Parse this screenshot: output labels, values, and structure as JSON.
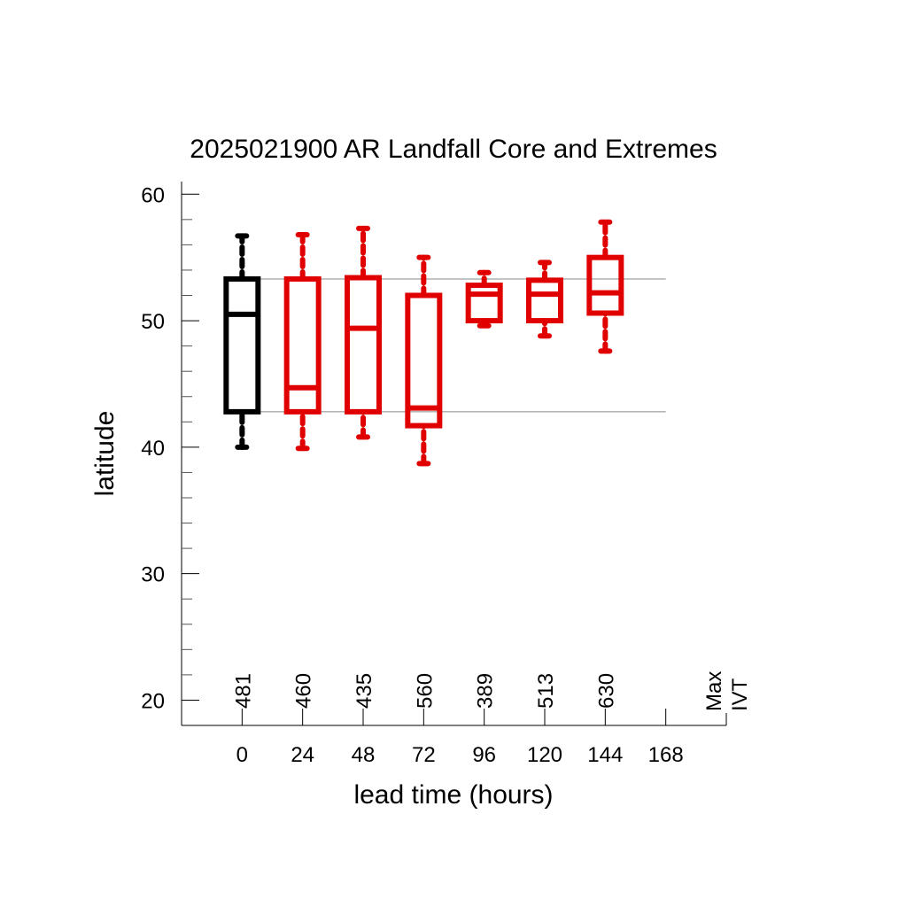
{
  "chart_data": {
    "type": "box",
    "title": "2025021900 AR Landfall Core and Extremes",
    "xlabel": "lead time (hours)",
    "ylabel": "latitude",
    "x_ticks": [
      "0",
      "24",
      "48",
      "72",
      "96",
      "120",
      "144",
      "168"
    ],
    "y_ticks": [
      20,
      30,
      40,
      50,
      60
    ],
    "xlim": [
      -24,
      192
    ],
    "ylim": [
      18,
      61
    ],
    "reference_lines": [
      53.3,
      42.8
    ],
    "count_header": [
      "Max",
      "IVT"
    ],
    "colors": {
      "observed": "#000000",
      "forecast": "#e00000",
      "reference": "#888888"
    },
    "boxes": [
      {
        "x": 0,
        "count": "481",
        "whisker_low": 40.0,
        "q1": 42.8,
        "median": 50.5,
        "q3": 53.3,
        "whisker_high": 56.7,
        "color": "#000000"
      },
      {
        "x": 24,
        "count": "460",
        "whisker_low": 39.9,
        "q1": 42.8,
        "median": 44.7,
        "q3": 53.3,
        "whisker_high": 56.8,
        "color": "#e00000"
      },
      {
        "x": 48,
        "count": "435",
        "whisker_low": 40.8,
        "q1": 42.8,
        "median": 49.4,
        "q3": 53.4,
        "whisker_high": 57.3,
        "color": "#e00000"
      },
      {
        "x": 72,
        "count": "560",
        "whisker_low": 38.7,
        "q1": 41.7,
        "median": 43.1,
        "q3": 52.0,
        "whisker_high": 55.0,
        "color": "#e00000"
      },
      {
        "x": 96,
        "count": "389",
        "whisker_low": 49.6,
        "q1": 50.0,
        "median": 52.1,
        "q3": 52.8,
        "whisker_high": 53.8,
        "color": "#e00000"
      },
      {
        "x": 120,
        "count": "513",
        "whisker_low": 48.8,
        "q1": 50.0,
        "median": 52.1,
        "q3": 53.2,
        "whisker_high": 54.6,
        "color": "#e00000"
      },
      {
        "x": 144,
        "count": "630",
        "whisker_low": 47.6,
        "q1": 50.6,
        "median": 52.2,
        "q3": 55.0,
        "whisker_high": 57.8,
        "color": "#e00000"
      }
    ]
  }
}
